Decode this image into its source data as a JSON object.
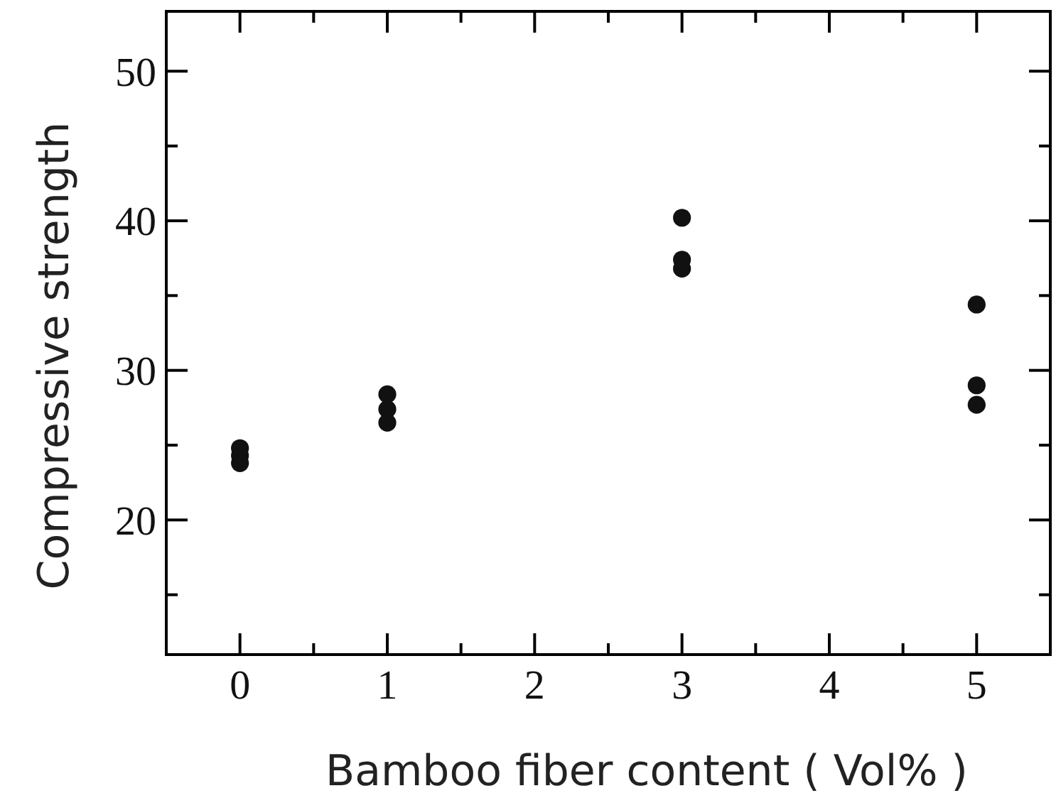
{
  "chart_data": {
    "type": "scatter",
    "xlabel": "Bamboo fiber content ( Vol% )",
    "ylabel": "Compressive strength",
    "x": [
      0,
      0,
      0,
      1,
      1,
      1,
      3,
      3,
      3,
      5,
      5,
      5
    ],
    "series": [
      {
        "color": "#111111",
        "values": [
          24.8,
          24.3,
          23.8,
          28.4,
          27.4,
          26.5,
          40.2,
          37.4,
          36.8,
          34.4,
          29.0,
          27.7
        ]
      }
    ],
    "xlim": [
      -0.5,
      5.5
    ],
    "ylim": [
      11,
      54
    ],
    "xticks": [
      0,
      {
        "value": 0.5,
        "label": null
      },
      1,
      {
        "value": 1.5,
        "label": null
      },
      2,
      {
        "value": 2.5,
        "label": null
      },
      3,
      {
        "value": 3.5,
        "label": null
      },
      4,
      {
        "value": 4.5,
        "label": null
      },
      5
    ],
    "yticks": [
      {
        "value": 15,
        "label": null
      },
      20,
      {
        "value": 25,
        "label": null
      },
      30,
      {
        "value": 35,
        "label": null
      },
      40,
      {
        "value": 45,
        "label": null
      },
      50
    ],
    "marker": "circle"
  }
}
